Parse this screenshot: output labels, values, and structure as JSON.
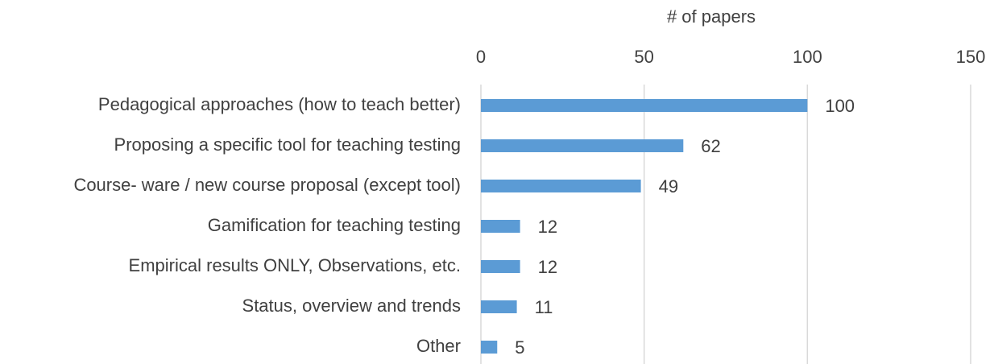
{
  "chart_data": {
    "type": "bar",
    "orientation": "horizontal",
    "x_label": "# of papers",
    "categories": [
      "Pedagogical approaches (how to teach better)",
      "Proposing a specific tool for teaching testing",
      "Course- ware / new course proposal (except tool)",
      "Gamification for teaching testing",
      "Empirical results ONLY, Observations, etc.",
      "Status, overview and trends",
      "Other"
    ],
    "values": [
      100,
      62,
      49,
      12,
      12,
      11,
      5
    ],
    "color": "#5b9bd5",
    "xlim": [
      0,
      150
    ],
    "xticks": [
      0,
      50,
      100,
      150
    ],
    "grid": true
  }
}
